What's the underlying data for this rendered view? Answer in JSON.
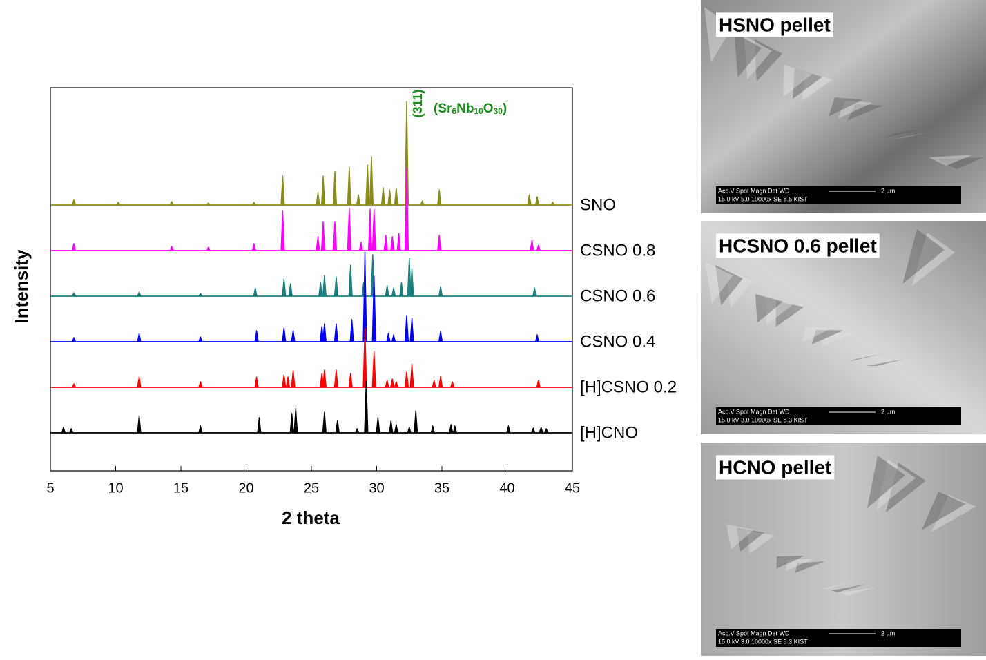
{
  "chart_data": {
    "type": "xrd",
    "xlabel": "2 theta",
    "ylabel": "Intensity",
    "xlim": [
      5,
      45
    ],
    "xticks": [
      5,
      10,
      15,
      20,
      25,
      30,
      35,
      40,
      45
    ],
    "annotation_hkl": "(311)",
    "annotation_phase": [
      "(Sr",
      "6",
      "Nb",
      "10",
      "O",
      "30",
      ")"
    ],
    "series": [
      {
        "name": "SNO",
        "color": "#8b8b1a",
        "x": [
          6.8,
          10.2,
          14.3,
          17.1,
          20.6,
          22.8,
          25.5,
          25.9,
          26.8,
          27.9,
          28.6,
          29.3,
          29.6,
          30.5,
          31.0,
          31.5,
          32.3,
          33.5,
          34.8,
          41.7,
          42.3,
          43.5
        ],
        "values": [
          8,
          4,
          5,
          3,
          4,
          42,
          18,
          42,
          48,
          55,
          15,
          58,
          70,
          25,
          22,
          24,
          150,
          6,
          22,
          15,
          12,
          4
        ]
      },
      {
        "name": "CSNO 0.8",
        "color": "#ff00ff",
        "x": [
          6.8,
          14.3,
          17.1,
          20.6,
          22.8,
          25.5,
          25.9,
          26.8,
          27.9,
          28.8,
          29.5,
          29.8,
          30.7,
          31.2,
          31.7,
          32.3,
          34.8,
          41.9,
          42.4
        ],
        "values": [
          10,
          6,
          5,
          10,
          58,
          20,
          42,
          42,
          62,
          12,
          60,
          60,
          22,
          20,
          25,
          120,
          22,
          15,
          8
        ]
      },
      {
        "name": "CSNO 0.6",
        "color": "#1a8080",
        "x": [
          6.8,
          11.8,
          16.5,
          20.7,
          22.9,
          23.4,
          25.7,
          26.0,
          26.9,
          28.0,
          29.0,
          29.7,
          30.8,
          31.3,
          31.9,
          32.5,
          32.7,
          34.9,
          42.1
        ],
        "values": [
          5,
          6,
          4,
          12,
          25,
          18,
          20,
          30,
          28,
          45,
          20,
          60,
          15,
          12,
          20,
          55,
          40,
          14,
          12
        ]
      },
      {
        "name": "CSNO 0.4",
        "color": "#0000ff",
        "x": [
          6.8,
          11.8,
          16.5,
          20.8,
          22.9,
          23.6,
          25.8,
          26.0,
          26.9,
          28.1,
          29.1,
          29.8,
          30.9,
          31.3,
          32.3,
          32.7,
          34.9,
          42.3
        ],
        "values": [
          6,
          12,
          7,
          16,
          20,
          16,
          22,
          26,
          26,
          32,
          130,
          95,
          12,
          10,
          38,
          34,
          15,
          10
        ]
      },
      {
        "name": "[H]CSNO 0.2",
        "color": "#ff0000",
        "x": [
          6.8,
          11.8,
          16.5,
          20.8,
          22.9,
          23.2,
          23.6,
          25.8,
          26.0,
          26.9,
          28.0,
          29.1,
          29.8,
          30.8,
          31.2,
          31.5,
          32.3,
          32.7,
          34.4,
          34.9,
          35.8,
          42.4
        ],
        "values": [
          5,
          15,
          8,
          15,
          18,
          15,
          24,
          20,
          25,
          25,
          20,
          85,
          52,
          10,
          12,
          8,
          22,
          33,
          10,
          16,
          8,
          10
        ]
      },
      {
        "name": "[H]CNO",
        "color": "#000000",
        "x": [
          6.0,
          6.6,
          11.8,
          16.5,
          21.0,
          23.5,
          23.8,
          26.0,
          27.0,
          28.5,
          29.2,
          30.1,
          31.1,
          31.5,
          32.5,
          33.0,
          34.3,
          35.7,
          36.0,
          40.1,
          42.0,
          42.6,
          43.0
        ],
        "values": [
          8,
          6,
          25,
          10,
          22,
          28,
          35,
          30,
          18,
          6,
          75,
          22,
          17,
          12,
          8,
          32,
          10,
          12,
          10,
          10,
          7,
          8,
          6
        ]
      }
    ]
  },
  "images": [
    {
      "label": "HSNO pellet",
      "bar_head": "Acc.V  Spot Magn    Det  WD",
      "scale": "2 µm",
      "bar_info": "15.0 kV 5.0  10000x   SE   8.5   KIST"
    },
    {
      "label": "HCSNO 0.6 pellet",
      "bar_head": "Acc.V  Spot Magn    Det  WD",
      "scale": "2 µm",
      "bar_info": "15.0 kV 3.0  10000x   SE   8.3   KIST"
    },
    {
      "label": "HCNO pellet",
      "bar_head": "Acc.V  Spot Magn    Det  WD",
      "scale": "2 µm",
      "bar_info": "15.0 kV 3.0  10000x   SE   8.3   KIST"
    }
  ]
}
